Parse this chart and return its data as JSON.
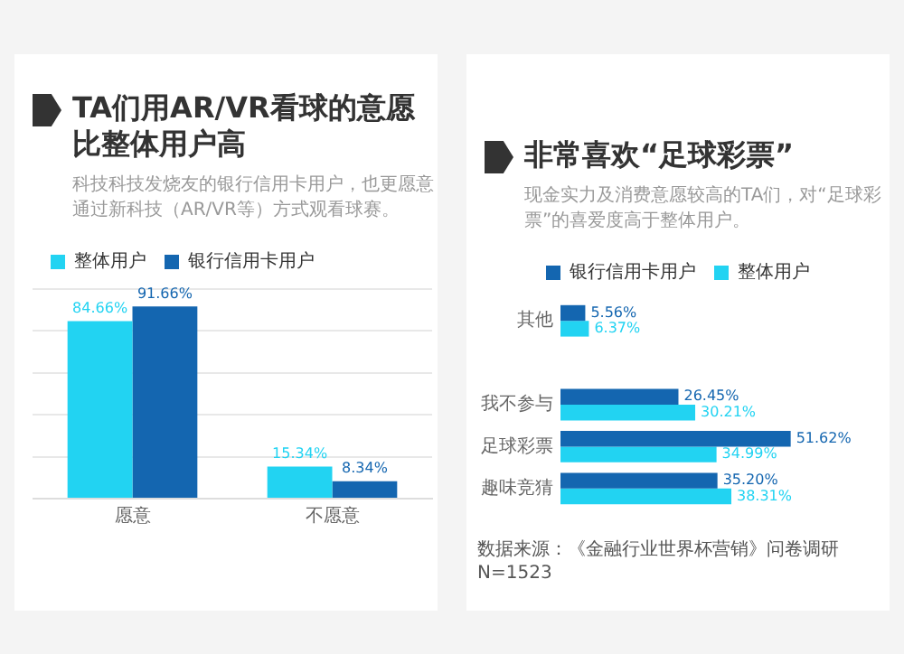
{
  "chart_data": [
    {
      "type": "bar",
      "title": "TA们用AR/VR看球的意愿比整体用户高",
      "subtitle": "科技科技发烧友的银行信用卡用户，也更愿意通过新科技（AR/VR等）方式观看球赛。",
      "categories": [
        "愿意",
        "不愿意"
      ],
      "series": [
        {
          "name": "整体用户",
          "color": "#22d3f2",
          "values": [
            84.66,
            15.34
          ],
          "value_labels": [
            "84.66%",
            "15.34%"
          ]
        },
        {
          "name": "银行信用卡用户",
          "color": "#1466b0",
          "values": [
            91.66,
            8.34
          ],
          "value_labels": [
            "91.66%",
            "8.34%"
          ]
        }
      ],
      "ylim": [
        0,
        100
      ],
      "yticks": [
        {
          "value": 0,
          "label": null
        },
        {
          "value": 20,
          "label": null
        },
        {
          "value": 40,
          "label": null
        },
        {
          "value": 60,
          "label": null
        },
        {
          "value": 80,
          "label": null
        },
        {
          "value": 100,
          "label": null
        }
      ],
      "grid": "y",
      "legend": "top left",
      "tick_labels": "x"
    },
    {
      "type": "bar",
      "orientation": "horizontal",
      "title": "非常喜欢“足球彩票”",
      "subtitle": "现金实力及消费意愿较高的TA们，对“足球彩票”的喜爱度高于整体用户。",
      "categories": [
        "其他",
        null,
        "我不参与",
        "足球彩票",
        "趣味竞猜"
      ],
      "series": [
        {
          "name": "银行信用卡用户",
          "color": "#1466b0",
          "values": [
            5.56,
            null,
            26.45,
            51.62,
            35.2
          ],
          "value_labels": [
            "5.56%",
            null,
            "26.45%",
            "51.62%",
            "35.20%"
          ]
        },
        {
          "name": "整体用户",
          "color": "#22d3f2",
          "values": [
            6.37,
            null,
            30.21,
            34.99,
            38.31
          ],
          "value_labels": [
            "6.37%",
            null,
            "30.21%",
            "34.99%",
            "38.31%"
          ]
        }
      ],
      "grid": false,
      "legend": "top right",
      "tick_labels": "y",
      "annotations": [
        "数据来源：《金融行业世界杯营销》问卷调研 N=1523"
      ]
    }
  ]
}
